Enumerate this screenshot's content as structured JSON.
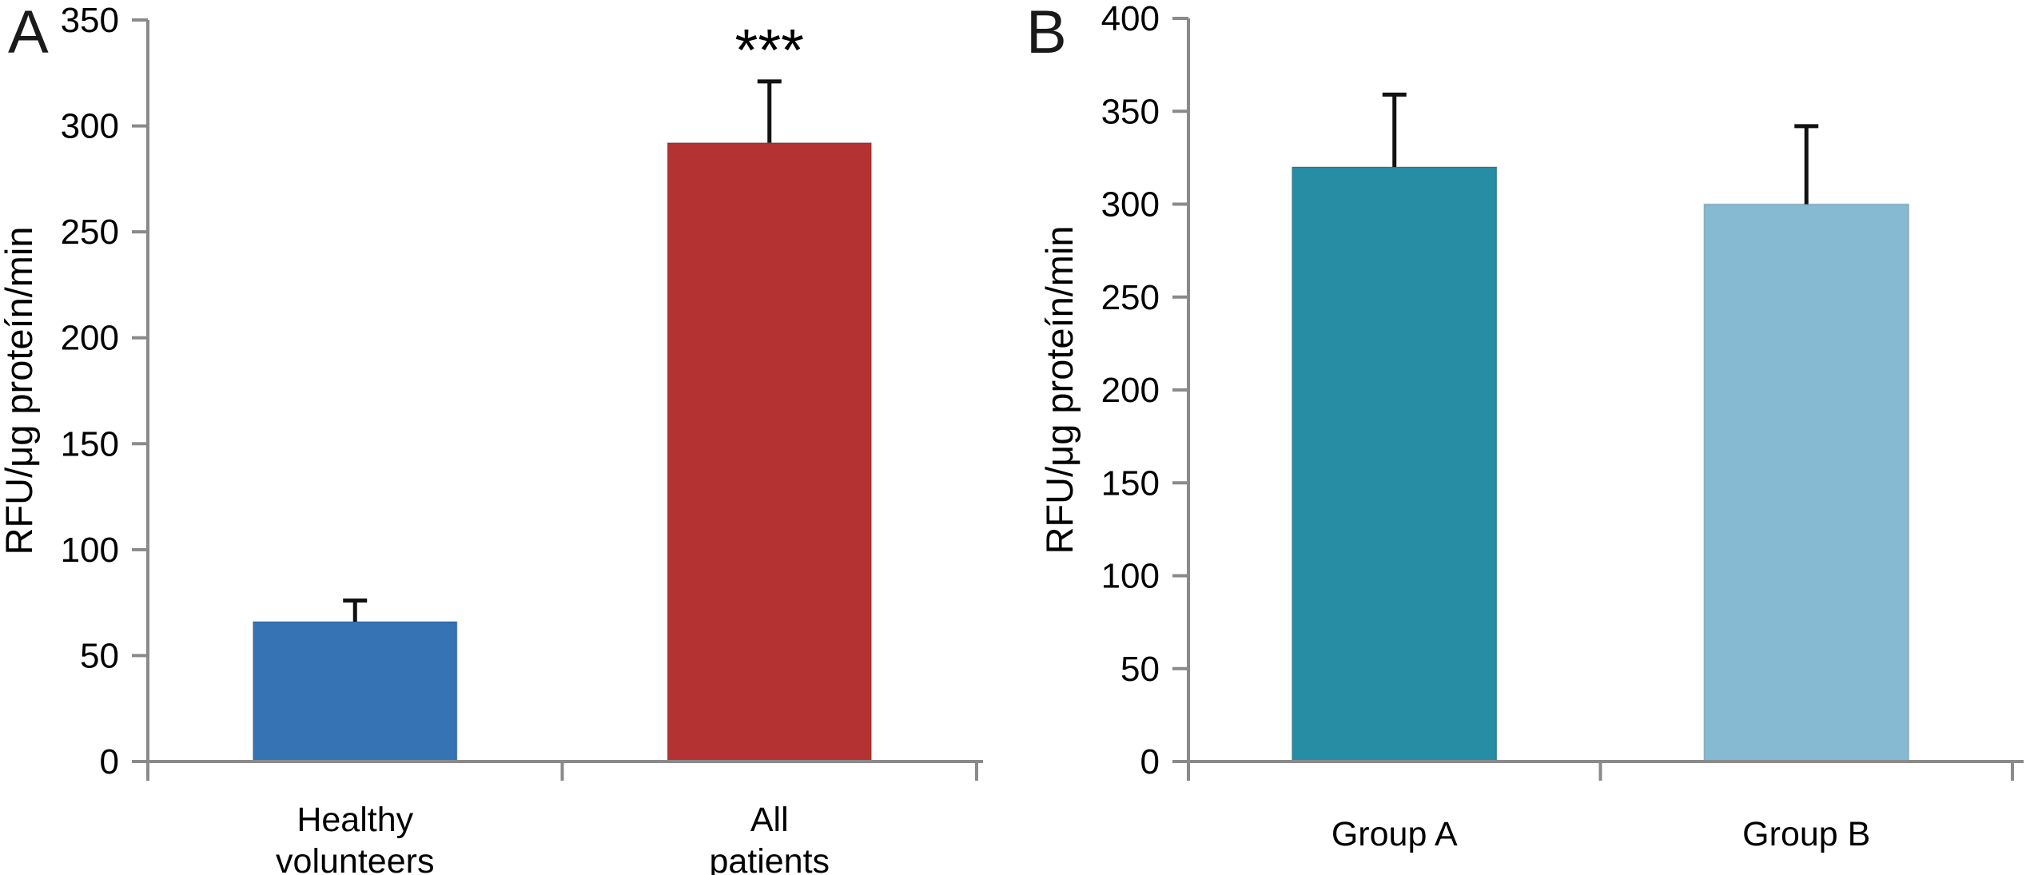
{
  "figure": {
    "background": "#ffffff",
    "axis_color": "#8a8a8a",
    "error_bar_color": "#111111"
  },
  "chart_data": [
    {
      "type": "bar",
      "panel_label": "A",
      "title": "",
      "xlabel": "",
      "ylabel": "RFU/μg proteín/min",
      "ylim": [
        0,
        350
      ],
      "ytick_step": 50,
      "ytick_labels": [
        "0",
        "50",
        "100",
        "150",
        "200",
        "250",
        "300",
        "350"
      ],
      "categories": [
        "Healthy volunteers",
        "All patients"
      ],
      "category_label_lines": [
        [
          "Healthy",
          "volunteers"
        ],
        [
          "All",
          "patients"
        ]
      ],
      "values": [
        66,
        292
      ],
      "errors": [
        10,
        29
      ],
      "bar_colors": [
        "#3573b5",
        "#b43332"
      ],
      "annotations": [
        {
          "bar_index": 1,
          "text": "***"
        }
      ],
      "grid": "off",
      "legend": "none"
    },
    {
      "type": "bar",
      "panel_label": "B",
      "title": "",
      "xlabel": "",
      "ylabel": "RFU/μg proteín/min",
      "ylim": [
        0,
        400
      ],
      "ytick_step": 50,
      "ytick_labels": [
        "0",
        "50",
        "100",
        "150",
        "200",
        "250",
        "300",
        "350",
        "400"
      ],
      "categories": [
        "Group A",
        "Group B"
      ],
      "category_label_lines": [
        [
          "Group A"
        ],
        [
          "Group B"
        ]
      ],
      "values": [
        320,
        300
      ],
      "errors": [
        39,
        42
      ],
      "bar_colors": [
        "#268da4",
        "#86bad2"
      ],
      "annotations": [],
      "grid": "off",
      "legend": "none"
    }
  ]
}
